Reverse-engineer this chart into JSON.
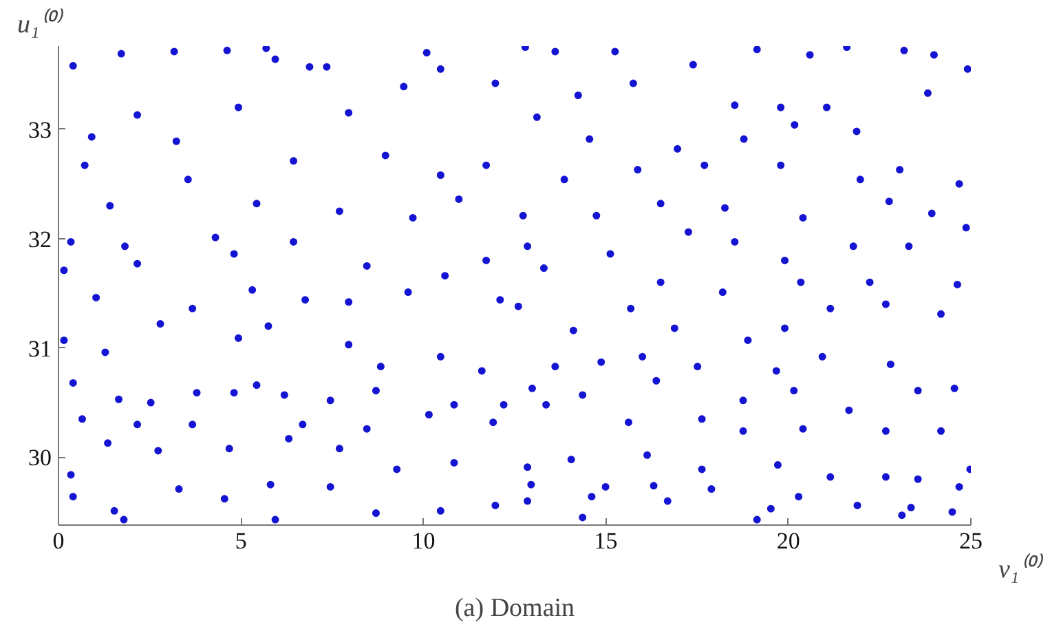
{
  "chart_data": {
    "type": "scatter",
    "xlabel": "v₁⁽⁰⁾",
    "ylabel": "u₁⁽⁰⁾",
    "annotations": [
      "(a) Domain"
    ],
    "xlim": [
      0,
      25
    ],
    "ylim": [
      29.38,
      33.76
    ],
    "xticks": [
      0,
      5,
      10,
      15,
      20,
      25
    ],
    "yticks": [
      30,
      31,
      32,
      33
    ],
    "grid": false,
    "marker": "circle",
    "color": "#1414d2",
    "x": [
      0.4,
      1.72,
      3.17,
      4.62,
      5.69,
      5.94,
      6.88,
      7.35,
      10.09,
      9.46,
      10.47,
      11.97,
      0.91,
      2.16,
      3.23,
      4.93,
      6.44,
      7.95,
      8.96,
      10.47,
      11.72,
      0.72,
      1.41,
      3.55,
      5.43,
      7.7,
      9.71,
      10.97,
      0.34,
      1.82,
      2.16,
      4.3,
      4.81,
      6.44,
      8.45,
      10.59,
      11.72,
      0.15,
      1.03,
      3.67,
      5.31,
      6.76,
      7.95,
      9.58,
      12.1,
      0.15,
      1.28,
      2.79,
      4.93,
      5.75,
      7.95,
      8.83,
      10.47,
      11.6,
      0.4,
      1.65,
      2.53,
      3.79,
      4.81,
      6.19,
      7.45,
      8.7,
      10.84,
      12.2,
      0.65,
      2.16,
      3.67,
      5.43,
      6.69,
      8.45,
      10.15,
      11.91,
      0.34,
      1.35,
      2.73,
      4.68,
      6.31,
      7.7,
      9.27,
      10.84,
      0.4,
      1.53,
      3.3,
      4.55,
      5.81,
      7.45,
      8.7,
      10.47,
      11.97,
      1.79,
      5.94,
      12.79,
      13.61,
      15.25,
      17.39,
      19.14,
      20.59,
      21.6,
      23.17,
      23.99,
      24.91,
      14.24,
      15.75,
      18.53,
      19.79,
      21.05,
      23.82,
      13.11,
      14.55,
      16.96,
      18.78,
      20.17,
      21.87,
      13.86,
      15.87,
      17.7,
      19.79,
      21.97,
      23.05,
      24.68,
      12.73,
      14.74,
      16.5,
      18.26,
      20.4,
      22.76,
      23.93,
      12.85,
      15.12,
      17.26,
      18.53,
      19.9,
      21.78,
      23.3,
      24.87,
      13.3,
      16.5,
      18.2,
      20.34,
      22.23,
      24.63,
      12.6,
      14.11,
      15.68,
      16.88,
      18.89,
      19.9,
      21.15,
      22.67,
      24.18,
      13.61,
      14.87,
      16.0,
      17.51,
      19.67,
      20.93,
      22.8,
      24.55,
      12.98,
      14.36,
      16.38,
      18.76,
      20.15,
      21.66,
      23.55,
      13.36,
      15.62,
      17.63,
      18.76,
      20.4,
      22.67,
      24.18,
      12.85,
      14.05,
      16.13,
      17.63,
      19.71,
      21.15,
      22.67,
      24.98,
      12.95,
      14.99,
      16.31,
      17.89,
      20.28,
      23.55,
      24.68,
      12.85,
      14.61,
      16.69,
      19.52,
      21.89,
      23.36,
      24.49,
      14.36,
      19.14,
      23.11
    ],
    "values": [
      33.58,
      33.69,
      33.71,
      33.72,
      33.74,
      33.64,
      33.57,
      33.57,
      33.7,
      33.39,
      33.55,
      33.42,
      32.93,
      33.13,
      32.89,
      33.2,
      32.71,
      33.15,
      32.76,
      32.58,
      32.67,
      32.67,
      32.3,
      32.54,
      32.32,
      32.25,
      32.19,
      32.36,
      31.97,
      31.93,
      31.77,
      32.01,
      31.86,
      31.97,
      31.75,
      31.66,
      31.8,
      31.71,
      31.46,
      31.36,
      31.53,
      31.44,
      31.42,
      31.51,
      31.44,
      31.07,
      30.96,
      31.22,
      31.09,
      31.2,
      31.03,
      30.83,
      30.92,
      30.79,
      30.68,
      30.53,
      30.5,
      30.59,
      30.59,
      30.57,
      30.52,
      30.61,
      30.48,
      30.48,
      30.35,
      30.3,
      30.3,
      30.66,
      30.3,
      30.26,
      30.39,
      30.32,
      29.84,
      30.13,
      30.06,
      30.08,
      30.17,
      30.08,
      29.89,
      29.95,
      29.64,
      29.51,
      29.71,
      29.62,
      29.75,
      29.73,
      29.49,
      29.51,
      29.56,
      29.43,
      29.43,
      33.75,
      33.71,
      33.71,
      33.59,
      33.73,
      33.68,
      33.75,
      33.72,
      33.68,
      33.55,
      33.31,
      33.42,
      33.22,
      33.2,
      33.2,
      33.33,
      33.11,
      32.91,
      32.82,
      32.91,
      33.04,
      32.98,
      32.54,
      32.63,
      32.67,
      32.67,
      32.54,
      32.63,
      32.5,
      32.21,
      32.21,
      32.32,
      32.28,
      32.19,
      32.34,
      32.23,
      31.93,
      31.86,
      32.06,
      31.97,
      31.8,
      31.93,
      31.93,
      32.1,
      31.73,
      31.6,
      31.51,
      31.6,
      31.6,
      31.58,
      31.38,
      31.16,
      31.36,
      31.18,
      31.07,
      31.18,
      31.36,
      31.4,
      31.31,
      30.83,
      30.87,
      30.92,
      30.83,
      30.79,
      30.92,
      30.85,
      30.63,
      30.63,
      30.57,
      30.7,
      30.52,
      30.61,
      30.43,
      30.61,
      30.48,
      30.32,
      30.35,
      30.24,
      30.26,
      30.24,
      30.24,
      29.91,
      29.98,
      30.02,
      29.89,
      29.93,
      29.82,
      29.82,
      29.89,
      29.75,
      29.73,
      29.74,
      29.71,
      29.64,
      29.8,
      29.73,
      29.6,
      29.64,
      29.6,
      29.53,
      29.56,
      29.54,
      29.5,
      29.45,
      29.43,
      29.47
    ]
  }
}
